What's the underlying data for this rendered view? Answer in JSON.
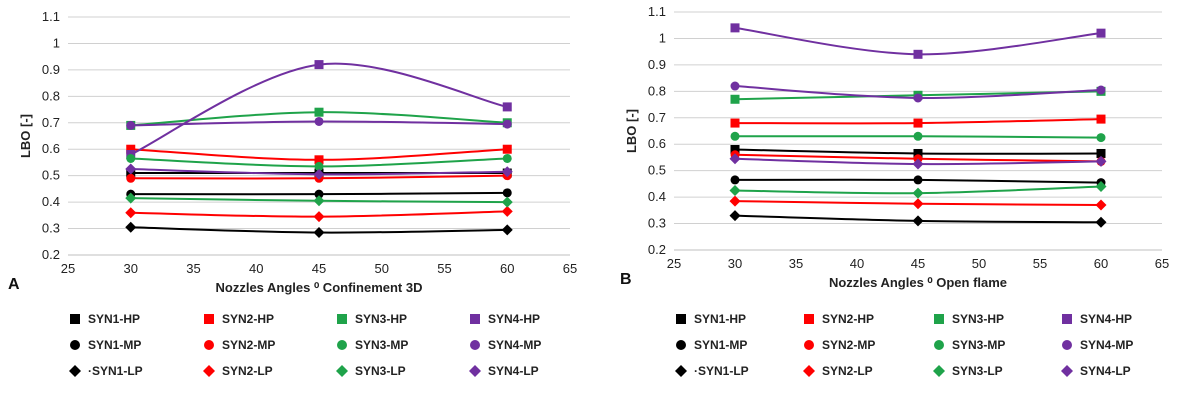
{
  "chart_data": [
    {
      "type": "line",
      "panel_label": "A",
      "xlabel": "Nozzles Angles ⁰ Confinement 3D",
      "ylabel": "LBO [-]",
      "xlim": [
        25,
        65
      ],
      "ylim": [
        0.2,
        1.1
      ],
      "xticks": [
        25,
        30,
        35,
        40,
        45,
        50,
        55,
        60,
        65
      ],
      "yticks": [
        0.2,
        0.3,
        0.4,
        0.5,
        0.6,
        0.7,
        0.8,
        0.9,
        1.0,
        1.1
      ],
      "ytick_labels": [
        "0.2",
        "0.3",
        "0.4",
        "0.5",
        "0.6",
        "0.7",
        "0.8",
        "0.9",
        "1",
        "1.1"
      ],
      "x": [
        30,
        45,
        60
      ],
      "series": [
        {
          "name": "SYN1-HP",
          "color": "#000000",
          "marker": "square",
          "values": [
            0.51,
            0.51,
            0.51
          ]
        },
        {
          "name": "SYN2-HP",
          "color": "#ff0000",
          "marker": "square",
          "values": [
            0.6,
            0.56,
            0.6
          ]
        },
        {
          "name": "SYN3-HP",
          "color": "#1fa34a",
          "marker": "square",
          "values": [
            0.69,
            0.74,
            0.7
          ]
        },
        {
          "name": "SYN4-HP",
          "color": "#7030a0",
          "marker": "square",
          "values": [
            0.58,
            0.92,
            0.76
          ]
        },
        {
          "name": "SYN1-MP",
          "color": "#000000",
          "marker": "circle",
          "values": [
            0.43,
            0.43,
            0.435
          ]
        },
        {
          "name": "SYN2-MP",
          "color": "#ff0000",
          "marker": "circle",
          "values": [
            0.49,
            0.49,
            0.5
          ]
        },
        {
          "name": "SYN3-MP",
          "color": "#1fa34a",
          "marker": "circle",
          "values": [
            0.565,
            0.535,
            0.565
          ]
        },
        {
          "name": "SYN4-MP",
          "color": "#7030a0",
          "marker": "circle",
          "values": [
            0.69,
            0.705,
            0.695
          ]
        },
        {
          "name": "SYN1-LP",
          "color": "#000000",
          "marker": "diamond",
          "values": [
            0.305,
            0.285,
            0.295
          ]
        },
        {
          "name": "SYN2-LP",
          "color": "#ff0000",
          "marker": "diamond",
          "values": [
            0.36,
            0.345,
            0.365
          ]
        },
        {
          "name": "SYN3-LP",
          "color": "#1fa34a",
          "marker": "diamond",
          "values": [
            0.415,
            0.405,
            0.4
          ]
        },
        {
          "name": "SYN4-LP",
          "color": "#7030a0",
          "marker": "diamond",
          "values": [
            0.525,
            0.505,
            0.515
          ]
        }
      ],
      "legend_labels": [
        "SYN1-HP",
        "SYN2-HP",
        "SYN3-HP",
        "SYN4-HP",
        "SYN1-MP",
        "SYN2-MP",
        "SYN3-MP",
        "SYN4-MP",
        "·SYN1-LP",
        "SYN2-LP",
        "SYN3-LP",
        "SYN4-LP"
      ],
      "legend": "bottom",
      "grid": "horizontal"
    },
    {
      "type": "line",
      "panel_label": "B",
      "xlabel": "Nozzles Angles ⁰ Open flame",
      "ylabel": "LBO [-]",
      "xlim": [
        25,
        65
      ],
      "ylim": [
        0.2,
        1.1
      ],
      "xticks": [
        25,
        30,
        35,
        40,
        45,
        50,
        55,
        60,
        65
      ],
      "yticks": [
        0.2,
        0.3,
        0.4,
        0.5,
        0.6,
        0.7,
        0.8,
        0.9,
        1.0,
        1.1
      ],
      "ytick_labels": [
        "0.2",
        "0.3",
        "0.4",
        "0.5",
        "0.6",
        "0.7",
        "0.8",
        "0.9",
        "1",
        "1.1"
      ],
      "x": [
        30,
        45,
        60
      ],
      "series": [
        {
          "name": "SYN1-HP",
          "color": "#000000",
          "marker": "square",
          "values": [
            0.58,
            0.565,
            0.565
          ]
        },
        {
          "name": "SYN2-HP",
          "color": "#ff0000",
          "marker": "square",
          "values": [
            0.68,
            0.68,
            0.695
          ]
        },
        {
          "name": "SYN3-HP",
          "color": "#1fa34a",
          "marker": "square",
          "values": [
            0.77,
            0.785,
            0.8
          ]
        },
        {
          "name": "SYN4-HP",
          "color": "#7030a0",
          "marker": "square",
          "values": [
            1.04,
            0.94,
            1.02
          ]
        },
        {
          "name": "SYN1-MP",
          "color": "#000000",
          "marker": "circle",
          "values": [
            0.465,
            0.465,
            0.455
          ]
        },
        {
          "name": "SYN2-MP",
          "color": "#ff0000",
          "marker": "circle",
          "values": [
            0.56,
            0.545,
            0.535
          ]
        },
        {
          "name": "SYN3-MP",
          "color": "#1fa34a",
          "marker": "circle",
          "values": [
            0.63,
            0.63,
            0.625
          ]
        },
        {
          "name": "SYN4-MP",
          "color": "#7030a0",
          "marker": "circle",
          "values": [
            0.82,
            0.775,
            0.805
          ]
        },
        {
          "name": "SYN1-LP",
          "color": "#000000",
          "marker": "diamond",
          "values": [
            0.33,
            0.31,
            0.305
          ]
        },
        {
          "name": "SYN2-LP",
          "color": "#ff0000",
          "marker": "diamond",
          "values": [
            0.385,
            0.375,
            0.37
          ]
        },
        {
          "name": "SYN3-LP",
          "color": "#1fa34a",
          "marker": "diamond",
          "values": [
            0.425,
            0.415,
            0.44
          ]
        },
        {
          "name": "SYN4-LP",
          "color": "#7030a0",
          "marker": "diamond",
          "values": [
            0.545,
            0.525,
            0.535
          ]
        }
      ],
      "legend_labels": [
        "SYN1-HP",
        "SYN2-HP",
        "SYN3-HP",
        "SYN4-HP",
        "SYN1-MP",
        "SYN2-MP",
        "SYN3-MP",
        "SYN4-MP",
        "·SYN1-LP",
        "SYN2-LP",
        "SYN3-LP",
        "SYN4-LP"
      ],
      "legend": "bottom",
      "grid": "horizontal"
    }
  ]
}
